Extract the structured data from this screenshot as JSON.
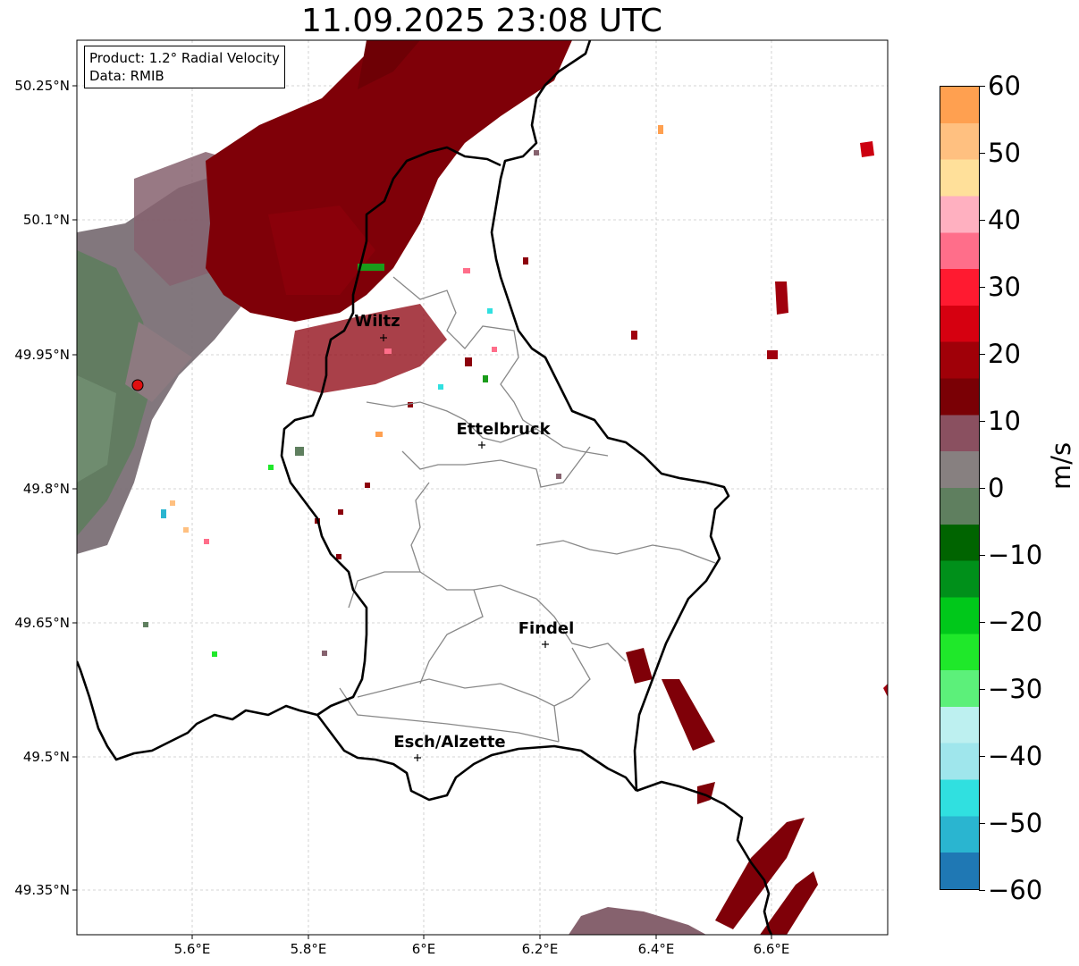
{
  "title": "11.09.2025 23:08 UTC",
  "info": {
    "product": "Product: 1.2° Radial Velocity",
    "data": "Data: RMIB"
  },
  "lat_labels": [
    "50.25°N",
    "50.1°N",
    "49.95°N",
    "49.8°N",
    "49.65°N",
    "49.5°N",
    "49.35°N"
  ],
  "lon_labels": [
    "5.6°E",
    "5.8°E",
    "6°E",
    "6.2°E",
    "6.4°E",
    "6.6°E"
  ],
  "cities": [
    "Wiltz",
    "Ettelbruck",
    "Findel",
    "Esch/Alzette"
  ],
  "colorbar": {
    "ticks": [
      "60",
      "50",
      "40",
      "30",
      "20",
      "10",
      "0",
      "−10",
      "−20",
      "−30",
      "−40",
      "−50",
      "−60"
    ],
    "unit": "m/s",
    "colors": [
      "#1f78b4",
      "#2ab5d0",
      "#30e0e0",
      "#9fe6ec",
      "#bdf0f0",
      "#5cf07a",
      "#1fe82a",
      "#00c81a",
      "#00901a",
      "#006400",
      "#5f7f5f",
      "#878080",
      "#8a5060",
      "#7a0005",
      "#a00008",
      "#d60010",
      "#ff1a30",
      "#ff6e8a",
      "#ffb0c0",
      "#ffe09a",
      "#ffc080",
      "#ffa050"
    ]
  }
}
